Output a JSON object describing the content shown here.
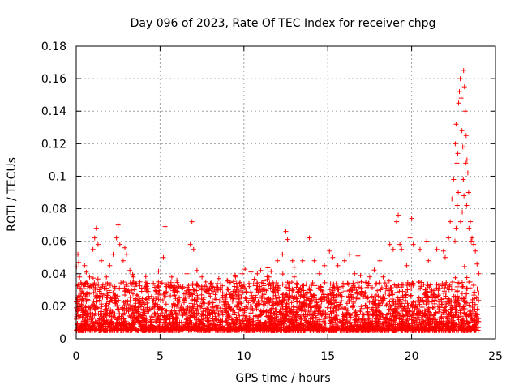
{
  "chart_data": {
    "type": "scatter",
    "title": "Day 096 of 2023, Rate Of TEC Index for receiver chpg",
    "xlabel": "GPS time / hours",
    "ylabel": "ROTI / TECUs",
    "xlim": [
      0,
      25
    ],
    "ylim": [
      0,
      0.18
    ],
    "xticks": [
      0,
      5,
      10,
      15,
      20,
      25
    ],
    "xtick_labels": [
      "0",
      "5",
      "10",
      "15",
      "20",
      "25"
    ],
    "yticks": [
      0,
      0.02,
      0.04,
      0.06,
      0.08,
      0.1,
      0.12,
      0.14,
      0.16,
      0.18
    ],
    "ytick_labels": [
      "0",
      "0.02",
      "0.04",
      "0.06",
      "0.08",
      "0.1",
      "0.12",
      "0.14",
      "0.16",
      "0.18"
    ],
    "grid": true,
    "marker": "plus",
    "color": "#ff0000",
    "series": [
      {
        "name": "ROTI",
        "points": [
          [
            0.0,
            0.012
          ],
          [
            0.1,
            0.052
          ],
          [
            0.15,
            0.047
          ],
          [
            0.2,
            0.038
          ],
          [
            0.3,
            0.028
          ],
          [
            0.5,
            0.045
          ],
          [
            0.6,
            0.041
          ],
          [
            0.8,
            0.038
          ],
          [
            1.0,
            0.055
          ],
          [
            1.1,
            0.062
          ],
          [
            1.2,
            0.068
          ],
          [
            1.3,
            0.058
          ],
          [
            1.5,
            0.048
          ],
          [
            1.8,
            0.038
          ],
          [
            2.0,
            0.045
          ],
          [
            2.2,
            0.052
          ],
          [
            2.4,
            0.062
          ],
          [
            2.5,
            0.07
          ],
          [
            2.6,
            0.058
          ],
          [
            2.8,
            0.048
          ],
          [
            2.9,
            0.056
          ],
          [
            3.0,
            0.052
          ],
          [
            3.2,
            0.042
          ],
          [
            3.4,
            0.038
          ],
          [
            3.8,
            0.035
          ],
          [
            4.2,
            0.03
          ],
          [
            4.6,
            0.034
          ],
          [
            4.9,
            0.035
          ],
          [
            5.2,
            0.05
          ],
          [
            5.3,
            0.069
          ],
          [
            5.4,
            0.032
          ],
          [
            5.7,
            0.038
          ],
          [
            6.0,
            0.036
          ],
          [
            6.2,
            0.032
          ],
          [
            6.6,
            0.04
          ],
          [
            6.8,
            0.058
          ],
          [
            6.9,
            0.072
          ],
          [
            7.0,
            0.055
          ],
          [
            7.2,
            0.042
          ],
          [
            7.5,
            0.038
          ],
          [
            8.0,
            0.034
          ],
          [
            8.5,
            0.037
          ],
          [
            9.0,
            0.036
          ],
          [
            9.5,
            0.038
          ],
          [
            9.9,
            0.04
          ],
          [
            10.3,
            0.034
          ],
          [
            10.8,
            0.04
          ],
          [
            11.0,
            0.042
          ],
          [
            11.5,
            0.038
          ],
          [
            12.0,
            0.048
          ],
          [
            12.3,
            0.052
          ],
          [
            12.5,
            0.066
          ],
          [
            12.6,
            0.061
          ],
          [
            12.9,
            0.048
          ],
          [
            13.0,
            0.038
          ],
          [
            13.5,
            0.048
          ],
          [
            13.9,
            0.062
          ],
          [
            14.2,
            0.048
          ],
          [
            14.5,
            0.04
          ],
          [
            14.8,
            0.045
          ],
          [
            15.1,
            0.054
          ],
          [
            15.3,
            0.05
          ],
          [
            15.6,
            0.045
          ],
          [
            16.0,
            0.048
          ],
          [
            16.3,
            0.052
          ],
          [
            16.6,
            0.04
          ],
          [
            16.8,
            0.051
          ],
          [
            17.0,
            0.035
          ],
          [
            17.5,
            0.038
          ],
          [
            17.9,
            0.034
          ],
          [
            18.1,
            0.048
          ],
          [
            18.3,
            0.038
          ],
          [
            18.7,
            0.058
          ],
          [
            18.9,
            0.055
          ],
          [
            19.1,
            0.072
          ],
          [
            19.2,
            0.076
          ],
          [
            19.3,
            0.058
          ],
          [
            19.4,
            0.055
          ],
          [
            19.7,
            0.045
          ],
          [
            19.9,
            0.062
          ],
          [
            20.0,
            0.074
          ],
          [
            20.1,
            0.058
          ],
          [
            20.5,
            0.055
          ],
          [
            20.9,
            0.06
          ],
          [
            21.0,
            0.048
          ],
          [
            21.5,
            0.055
          ],
          [
            21.9,
            0.054
          ],
          [
            22.0,
            0.05
          ],
          [
            22.2,
            0.062
          ],
          [
            22.3,
            0.072
          ],
          [
            22.4,
            0.086
          ],
          [
            22.5,
            0.098
          ],
          [
            22.6,
            0.12
          ],
          [
            22.65,
            0.132
          ],
          [
            22.7,
            0.108
          ],
          [
            22.75,
            0.114
          ],
          [
            22.8,
            0.145
          ],
          [
            22.85,
            0.152
          ],
          [
            22.9,
            0.16
          ],
          [
            22.95,
            0.148
          ],
          [
            23.0,
            0.128
          ],
          [
            23.05,
            0.118
          ],
          [
            23.1,
            0.165
          ],
          [
            23.15,
            0.155
          ],
          [
            23.2,
            0.14
          ],
          [
            23.25,
            0.125
          ],
          [
            23.3,
            0.11
          ],
          [
            23.35,
            0.102
          ],
          [
            23.4,
            0.09
          ],
          [
            23.5,
            0.072
          ],
          [
            23.6,
            0.062
          ],
          [
            23.7,
            0.058
          ],
          [
            23.8,
            0.054
          ],
          [
            23.9,
            0.046
          ],
          [
            24.0,
            0.04
          ],
          [
            22.65,
            0.068
          ],
          [
            22.72,
            0.082
          ],
          [
            22.78,
            0.09
          ],
          [
            23.02,
            0.078
          ],
          [
            23.08,
            0.098
          ],
          [
            23.12,
            0.088
          ],
          [
            23.18,
            0.118
          ],
          [
            23.22,
            0.108
          ],
          [
            22.58,
            0.06
          ],
          [
            22.92,
            0.072
          ],
          [
            23.28,
            0.082
          ],
          [
            23.42,
            0.068
          ],
          [
            23.55,
            0.06
          ]
        ]
      }
    ]
  }
}
